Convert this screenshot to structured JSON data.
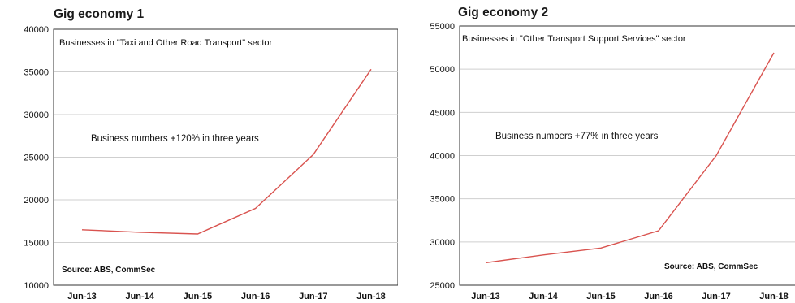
{
  "chart_data": [
    {
      "type": "line",
      "title": "Gig economy 1",
      "subtitle": "Businesses in \"Taxi and Other Road Transport\" sector",
      "annotation": "Business numbers +120% in three years",
      "source": "Source: ABS, CommSec",
      "categories": [
        "Jun-13",
        "Jun-14",
        "Jun-15",
        "Jun-16",
        "Jun-17",
        "Jun-18"
      ],
      "yticks": [
        "40000",
        "35000",
        "30000",
        "25000",
        "20000",
        "15000",
        "10000"
      ],
      "ylim": [
        10000,
        40000
      ],
      "series": [
        {
          "values": [
            16500,
            16200,
            16000,
            19000,
            25300,
            35300
          ],
          "color": "#d9534f"
        }
      ],
      "grid": true,
      "source_position": "bottom-left"
    },
    {
      "type": "line",
      "title": "Gig economy 2",
      "subtitle": "Businesses in \"Other Transport Support Services\" sector",
      "annotation": "Business numbers +77% in three years",
      "source": "Source: ABS, CommSec",
      "categories": [
        "Jun-13",
        "Jun-14",
        "Jun-15",
        "Jun-16",
        "Jun-17",
        "Jun-18"
      ],
      "yticks": [
        "55000",
        "50000",
        "45000",
        "40000",
        "35000",
        "30000",
        "25000"
      ],
      "ylim": [
        25000,
        55000
      ],
      "series": [
        {
          "values": [
            27600,
            28500,
            29300,
            31300,
            40000,
            51900
          ],
          "color": "#d9534f"
        }
      ],
      "grid": true,
      "source_position": "bottom-right"
    }
  ]
}
